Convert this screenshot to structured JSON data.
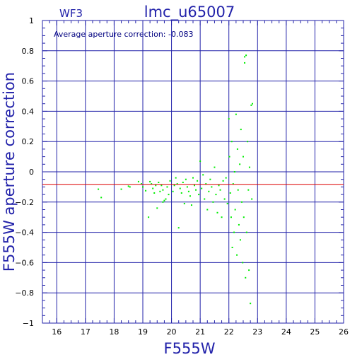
{
  "chart_data": {
    "type": "scatter",
    "panel_label": "WF3",
    "title": "lmc_u65007",
    "xlabel": "F555W",
    "ylabel": "F555W aperture correction",
    "annotation": "Average aperture correction: -0.083",
    "average_value": -0.083,
    "xlim": [
      15.5,
      26
    ],
    "ylim": [
      -1,
      1
    ],
    "x_ticks": [
      16,
      17,
      18,
      19,
      20,
      21,
      22,
      23,
      24,
      25,
      26
    ],
    "y_ticks": [
      -1,
      -0.8,
      -0.6,
      -0.4,
      -0.2,
      0,
      0.2,
      0.4,
      0.6,
      0.8,
      1
    ],
    "x_tick_labels": [
      "16",
      "17",
      "18",
      "19",
      "20",
      "21",
      "22",
      "23",
      "24",
      "25",
      "26"
    ],
    "y_tick_labels": [
      "−1",
      "−0.8",
      "−0.6",
      "−0.4",
      "−0.2",
      "0",
      "0.2",
      "0.4",
      "0.6",
      "0.8",
      "1"
    ],
    "grid": true,
    "colors": {
      "axes": "#2222aa",
      "grid": "#2222aa",
      "points": "#00ee00",
      "average_line": "#dd0000"
    },
    "points": [
      [
        17.45,
        -0.115
      ],
      [
        17.55,
        -0.17
      ],
      [
        18.25,
        -0.115
      ],
      [
        18.5,
        -0.095
      ],
      [
        18.55,
        -0.1
      ],
      [
        18.85,
        -0.065
      ],
      [
        18.95,
        -0.08
      ],
      [
        19.0,
        -0.1
      ],
      [
        19.1,
        -0.125
      ],
      [
        19.2,
        -0.3
      ],
      [
        19.25,
        -0.065
      ],
      [
        19.3,
        -0.08
      ],
      [
        19.35,
        -0.11
      ],
      [
        19.4,
        -0.14
      ],
      [
        19.45,
        -0.09
      ],
      [
        19.5,
        -0.24
      ],
      [
        19.55,
        -0.07
      ],
      [
        19.6,
        -0.13
      ],
      [
        19.65,
        -0.09
      ],
      [
        19.7,
        -0.12
      ],
      [
        19.75,
        -0.19
      ],
      [
        19.8,
        -0.18
      ],
      [
        19.85,
        -0.1
      ],
      [
        19.9,
        -0.15
      ],
      [
        19.95,
        -0.06
      ],
      [
        19.7,
        -0.2
      ],
      [
        20.05,
        -0.13
      ],
      [
        20.1,
        -0.09
      ],
      [
        20.15,
        -0.04
      ],
      [
        20.2,
        -0.08
      ],
      [
        20.25,
        -0.37
      ],
      [
        20.3,
        -0.11
      ],
      [
        20.35,
        -0.14
      ],
      [
        20.4,
        -0.07
      ],
      [
        20.45,
        -0.21
      ],
      [
        20.5,
        -0.05
      ],
      [
        20.55,
        -0.1
      ],
      [
        20.6,
        -0.13
      ],
      [
        20.65,
        -0.16
      ],
      [
        20.7,
        -0.22
      ],
      [
        20.75,
        -0.04
      ],
      [
        20.8,
        -0.09
      ],
      [
        20.85,
        -0.12
      ],
      [
        20.9,
        -0.06
      ],
      [
        20.95,
        -0.15
      ],
      [
        21.0,
        0.07
      ],
      [
        21.05,
        -0.11
      ],
      [
        21.1,
        -0.02
      ],
      [
        21.15,
        -0.18
      ],
      [
        21.2,
        -0.08
      ],
      [
        21.25,
        -0.25
      ],
      [
        21.3,
        -0.13
      ],
      [
        21.35,
        -0.05
      ],
      [
        21.4,
        -0.1
      ],
      [
        21.45,
        -0.2
      ],
      [
        21.5,
        0.03
      ],
      [
        21.55,
        -0.15
      ],
      [
        21.6,
        -0.27
      ],
      [
        21.65,
        -0.09
      ],
      [
        21.7,
        -0.12
      ],
      [
        21.75,
        -0.3
      ],
      [
        21.8,
        -0.06
      ],
      [
        21.85,
        -0.18
      ],
      [
        21.9,
        -0.04
      ],
      [
        21.95,
        -0.21
      ],
      [
        22.0,
        0.35
      ],
      [
        22.02,
        0.1
      ],
      [
        22.05,
        -0.14
      ],
      [
        22.08,
        -0.3
      ],
      [
        22.1,
        0.2
      ],
      [
        22.12,
        -0.5
      ],
      [
        22.15,
        -0.08
      ],
      [
        22.18,
        -0.4
      ],
      [
        22.2,
        0.0
      ],
      [
        22.22,
        -0.25
      ],
      [
        22.25,
        0.38
      ],
      [
        22.28,
        -0.55
      ],
      [
        22.3,
        0.15
      ],
      [
        22.32,
        -0.12
      ],
      [
        22.35,
        -0.35
      ],
      [
        22.38,
        0.05
      ],
      [
        22.4,
        -0.45
      ],
      [
        22.42,
        0.28
      ],
      [
        22.45,
        -0.2
      ],
      [
        22.48,
        -0.6
      ],
      [
        22.5,
        0.1
      ],
      [
        22.52,
        -0.3
      ],
      [
        22.55,
        0.76
      ],
      [
        22.55,
        0.72
      ],
      [
        22.58,
        -0.7
      ],
      [
        22.6,
        0.77
      ],
      [
        22.62,
        -0.4
      ],
      [
        22.65,
        0.2
      ],
      [
        22.68,
        -0.12
      ],
      [
        22.7,
        -0.65
      ],
      [
        22.72,
        0.03
      ],
      [
        22.75,
        -0.87
      ],
      [
        22.78,
        0.44
      ],
      [
        22.8,
        -0.18
      ],
      [
        22.82,
        0.45
      ]
    ]
  }
}
